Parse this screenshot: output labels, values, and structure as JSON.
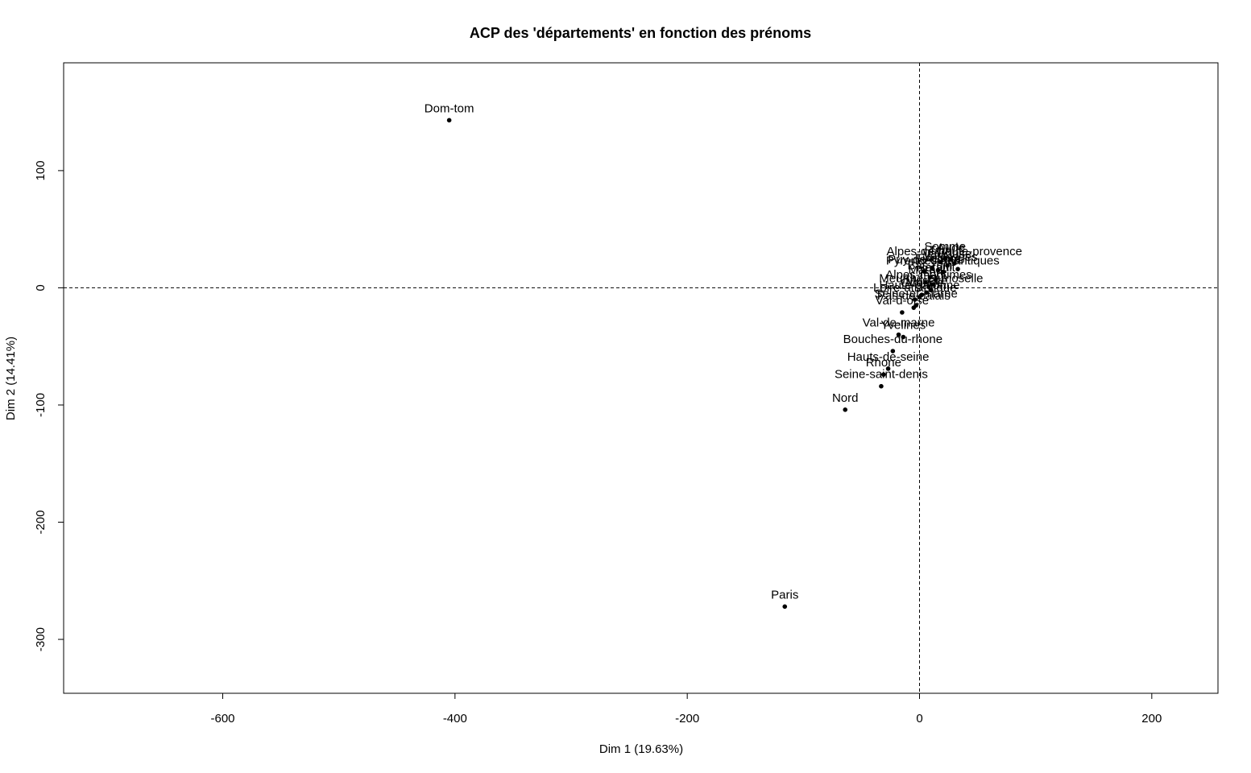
{
  "chart_data": {
    "type": "scatter",
    "title": "ACP des 'départements' en fonction des prénoms",
    "xlabel": "Dim 1 (19.63%)",
    "ylabel": "Dim 2 (14.41%)",
    "xlim": [
      -737,
      257
    ],
    "ylim": [
      -346,
      192
    ],
    "xticks": [
      -600,
      -400,
      -200,
      0,
      200
    ],
    "yticks": [
      -300,
      -200,
      -100,
      0,
      100
    ],
    "xtick_labels": [
      "-600",
      "-400",
      "-200",
      "0",
      "200"
    ],
    "ytick_labels": [
      "-300",
      "-200",
      "-100",
      "0",
      "100"
    ],
    "reference_lines": {
      "x": 0,
      "y": 0,
      "style": "dashed"
    },
    "points": [
      {
        "label": "Dom-tom",
        "x": -405,
        "y": 143
      },
      {
        "label": "Paris",
        "x": -116,
        "y": -272
      },
      {
        "label": "Nord",
        "x": -64,
        "y": -104
      },
      {
        "label": "Seine-saint-denis",
        "x": -33,
        "y": -84
      },
      {
        "label": "Rhone",
        "x": -31,
        "y": -74
      },
      {
        "label": "Hauts-de-seine",
        "x": -27,
        "y": -69
      },
      {
        "label": "Bouches-du-rhone",
        "x": -23,
        "y": -54
      },
      {
        "label": "Yvelines",
        "x": -14,
        "y": -42
      },
      {
        "label": "Val-de-marne",
        "x": -18,
        "y": -40
      },
      {
        "label": "Val-d-oise",
        "x": -15,
        "y": -21
      },
      {
        "label": "Pas-de-calais",
        "x": -5,
        "y": -17
      },
      {
        "label": "Seine-et-marne",
        "x": -3,
        "y": -15
      },
      {
        "label": "Loire-atlantique",
        "x": -4,
        "y": -10
      },
      {
        "label": "Haute-garonne",
        "x": 0,
        "y": -8
      },
      {
        "label": "Gironde",
        "x": 2,
        "y": -6
      },
      {
        "label": "Moselle",
        "x": 6,
        "y": -4
      },
      {
        "label": "Meurthe-et-moselle",
        "x": 10,
        "y": -2
      },
      {
        "label": "Alpes-maritimes",
        "x": 8,
        "y": 1
      },
      {
        "label": "Isere",
        "x": 12,
        "y": 3
      },
      {
        "label": "Marne",
        "x": 5,
        "y": 5
      },
      {
        "label": "Herault",
        "x": 14,
        "y": 7
      },
      {
        "label": "Bas-rhin",
        "x": 9,
        "y": 9
      },
      {
        "label": "Pyrenees-atlantiques",
        "x": 20,
        "y": 13
      },
      {
        "label": "Finistere",
        "x": 16,
        "y": 15
      },
      {
        "label": "Var",
        "x": 11,
        "y": 17
      },
      {
        "label": "Vaucluse",
        "x": 24,
        "y": 19
      },
      {
        "label": "Alpes-de-haute-provence",
        "x": 30,
        "y": 21
      },
      {
        "label": "Tarn",
        "x": 18,
        "y": 22
      },
      {
        "label": "Puy-de-dome",
        "x": 4,
        "y": 14
      },
      {
        "label": "Aude",
        "x": 27,
        "y": 24
      },
      {
        "label": "Somme",
        "x": 22,
        "y": 25
      },
      {
        "label": "Vosges",
        "x": 33,
        "y": 16
      }
    ]
  }
}
